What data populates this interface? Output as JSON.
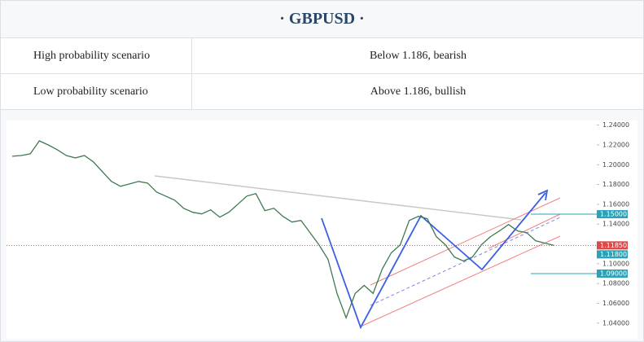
{
  "header": {
    "title": "· GBPUSD ·"
  },
  "table": {
    "rows": [
      [
        "High probability scenario",
        "Below 1.186, bearish"
      ],
      [
        "Low probability scenario",
        "Above 1.186, bullish"
      ]
    ]
  },
  "chart_data": {
    "type": "line",
    "color": "#3f7a52",
    "values": [
      1.2085,
      1.2093,
      1.211,
      1.2241,
      1.22,
      1.2151,
      1.2093,
      1.2069,
      1.2093,
      1.2028,
      1.1929,
      1.1831,
      1.1782,
      1.1806,
      1.1831,
      1.1815,
      1.1724,
      1.1683,
      1.1642,
      1.156,
      1.1519,
      1.1503,
      1.1544,
      1.147,
      1.1519,
      1.1601,
      1.1683,
      1.1708,
      1.1536,
      1.156,
      1.1478,
      1.1421,
      1.1437,
      1.1314,
      1.1191,
      1.1044,
      1.0699,
      1.0453,
      1.0699,
      1.0781,
      1.0699,
      1.0945,
      1.1109,
      1.1191,
      1.1437,
      1.1478,
      1.1454,
      1.1273,
      1.1191,
      1.1068,
      1.1027,
      1.1068,
      1.1191,
      1.1273,
      1.1331,
      1.1396,
      1.1331,
      1.1314,
      1.1232,
      1.1208,
      1.1185
    ],
    "ylim": [
      1.025,
      1.243
    ],
    "yticks": [
      {
        "value": 1.24,
        "label": "1.24000"
      },
      {
        "value": 1.22,
        "label": "1.22000"
      },
      {
        "value": 1.2,
        "label": "1.20000"
      },
      {
        "value": 1.18,
        "label": "1.18000"
      },
      {
        "value": 1.16,
        "label": "1.16000"
      },
      {
        "value": 1.14,
        "label": "1.14000"
      },
      {
        "value": 1.1,
        "label": "1.10000"
      },
      {
        "value": 1.08,
        "label": "1.08000"
      },
      {
        "value": 1.06,
        "label": "1.06000"
      },
      {
        "value": 1.04,
        "label": "1.04000"
      }
    ],
    "price_tags": [
      {
        "value": 1.15,
        "label": "1.15000",
        "color": "#2aa3b8",
        "line": "segment"
      },
      {
        "value": 1.1185,
        "label": "1.11850",
        "color": "#e04848",
        "line": "dotted"
      },
      {
        "value": 1.118,
        "label": "1.11800",
        "color": "#2aa3b8",
        "line": "none"
      },
      {
        "value": 1.09,
        "label": "1.09000",
        "color": "#2aa3b8",
        "line": "segment"
      }
    ]
  }
}
